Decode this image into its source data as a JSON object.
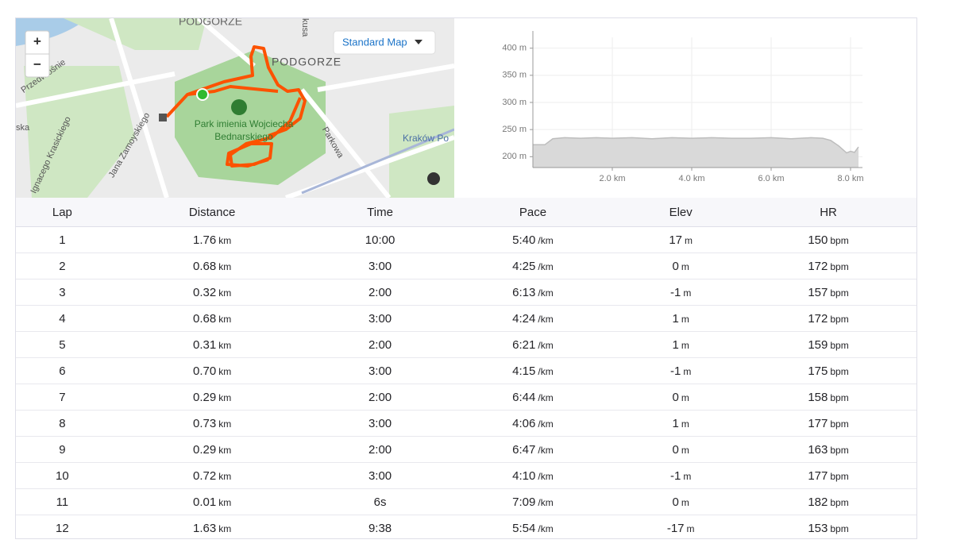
{
  "map": {
    "zoom_in": "+",
    "zoom_out": "−",
    "map_style": "Standard Map",
    "labels": [
      "PODGÓRZE",
      "PODGORZE",
      "Park imienia Wojciecha",
      "Bednarskiego",
      "Parkowa",
      "Kraków Po",
      "Jana Zamoyskiego",
      "Ignacego Krasickiego",
      "Przedwiośnie",
      "ska",
      "kusa"
    ]
  },
  "elevation_chart": {
    "type": "area",
    "x": [
      0,
      0.3,
      0.5,
      0.8,
      1.2,
      1.6,
      2.0,
      2.5,
      3.0,
      3.5,
      4.0,
      4.5,
      5.0,
      5.5,
      6.0,
      6.5,
      7.0,
      7.3,
      7.5,
      7.7,
      7.9,
      8.0,
      8.1,
      8.2
    ],
    "values": [
      222,
      222,
      233,
      235,
      234,
      235,
      234,
      235,
      233,
      235,
      234,
      235,
      234,
      234,
      235,
      233,
      235,
      234,
      230,
      220,
      207,
      210,
      208,
      218
    ],
    "color": "#d9d9d9",
    "line_color": "#bdbdbd",
    "xlim": [
      0,
      8.3
    ],
    "ylim": [
      180,
      420
    ],
    "xticks": [
      {
        "value": 2,
        "label": "2.0 km"
      },
      {
        "value": 4,
        "label": "4.0 km"
      },
      {
        "value": 6,
        "label": "6.0 km"
      },
      {
        "value": 8,
        "label": "8.0 km"
      }
    ],
    "yticks": [
      {
        "value": 200,
        "label": "200 m"
      },
      {
        "value": 250,
        "label": "250 m"
      },
      {
        "value": 300,
        "label": "300 m"
      },
      {
        "value": 350,
        "label": "350 m"
      },
      {
        "value": 400,
        "label": "400 m"
      }
    ],
    "grid": true
  },
  "table": {
    "columns": [
      "Lap",
      "Distance",
      "Time",
      "Pace",
      "Elev",
      "HR"
    ],
    "units": {
      "1": "km",
      "3": "/km",
      "4": "m",
      "5": "bpm"
    },
    "rows": [
      [
        "1",
        "1.76",
        "10:00",
        "5:40",
        "17",
        "150"
      ],
      [
        "2",
        "0.68",
        "3:00",
        "4:25",
        "0",
        "172"
      ],
      [
        "3",
        "0.32",
        "2:00",
        "6:13",
        "-1",
        "157"
      ],
      [
        "4",
        "0.68",
        "3:00",
        "4:24",
        "1",
        "172"
      ],
      [
        "5",
        "0.31",
        "2:00",
        "6:21",
        "1",
        "159"
      ],
      [
        "6",
        "0.70",
        "3:00",
        "4:15",
        "-1",
        "175"
      ],
      [
        "7",
        "0.29",
        "2:00",
        "6:44",
        "0",
        "158"
      ],
      [
        "8",
        "0.73",
        "3:00",
        "4:06",
        "1",
        "177"
      ],
      [
        "9",
        "0.29",
        "2:00",
        "6:47",
        "0",
        "163"
      ],
      [
        "10",
        "0.72",
        "3:00",
        "4:10",
        "-1",
        "177"
      ],
      [
        "11",
        "0.01",
        "6s",
        "7:09",
        "0",
        "182"
      ],
      [
        "12",
        "1.63",
        "9:38",
        "5:54",
        "-17",
        "153"
      ]
    ]
  }
}
